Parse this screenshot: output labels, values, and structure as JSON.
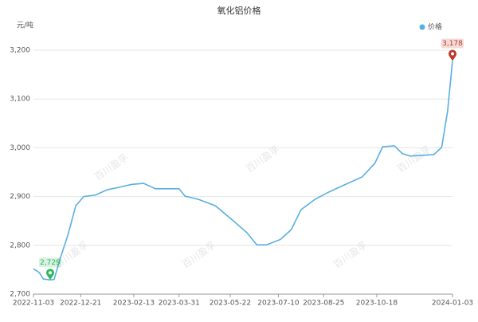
{
  "chart_data": {
    "type": "line",
    "title": "氧化铝价格",
    "y_unit": "元/吨",
    "watermark": "百川盈孚",
    "x": [
      "2022-11-03",
      "2022-11-09",
      "2022-11-13",
      "2022-11-20",
      "2022-11-24",
      "2022-11-30",
      "2022-12-08",
      "2022-12-16",
      "2022-12-24",
      "2023-01-05",
      "2023-01-17",
      "2023-01-29",
      "2023-02-11",
      "2023-02-23",
      "2023-03-07",
      "2023-03-31",
      "2023-04-06",
      "2023-04-20",
      "2023-05-07",
      "2023-05-23",
      "2023-06-08",
      "2023-06-18",
      "2023-06-28",
      "2023-07-12",
      "2023-07-23",
      "2023-08-02",
      "2023-08-16",
      "2023-08-28",
      "2023-09-13",
      "2023-10-03",
      "2023-10-16",
      "2023-10-24",
      "2023-11-05",
      "2023-11-13",
      "2023-11-21",
      "2023-12-15",
      "2023-12-23",
      "2023-12-29",
      "2024-01-03"
    ],
    "series": [
      {
        "name": "价格",
        "color": "#5aaee0",
        "values": [
          2752,
          2744,
          2731,
          2729,
          2730,
          2772,
          2821,
          2881,
          2900,
          2903,
          2914,
          2919,
          2925,
          2927,
          2916,
          2916,
          2901,
          2894,
          2881,
          2854,
          2826,
          2801,
          2801,
          2812,
          2832,
          2873,
          2894,
          2907,
          2922,
          2940,
          2968,
          3002,
          3004,
          2988,
          2983,
          2986,
          3001,
          3075,
          3178
        ],
        "value_labels": [
          null,
          null,
          null,
          "2,729",
          null,
          null,
          null,
          null,
          null,
          null,
          null,
          null,
          null,
          null,
          null,
          null,
          null,
          null,
          null,
          null,
          null,
          null,
          null,
          null,
          null,
          null,
          null,
          null,
          null,
          null,
          null,
          null,
          null,
          null,
          null,
          null,
          null,
          null,
          "3,178"
        ]
      }
    ],
    "xlim": [
      "2022-11-03",
      "2024-01-03"
    ],
    "xticks": [
      "2022-11-03",
      "2022-12-21",
      "2023-02-13",
      "2023-03-31",
      "2023-05-22",
      "2023-07-10",
      "2023-08-25",
      "2023-10-18",
      "2024-01-03"
    ],
    "ylim": [
      2700,
      3200
    ],
    "yticks": [
      {
        "value": 2700,
        "label": "2,700"
      },
      {
        "value": 2800,
        "label": "2,800"
      },
      {
        "value": 2900,
        "label": "2,900"
      },
      {
        "value": 3000,
        "label": "3,000"
      },
      {
        "value": 3100,
        "label": "3,100"
      },
      {
        "value": 3200,
        "label": "3,200"
      }
    ],
    "grid": true,
    "legend": "top-right",
    "min_color": "#2eb85c",
    "max_color": "#c0392b"
  }
}
